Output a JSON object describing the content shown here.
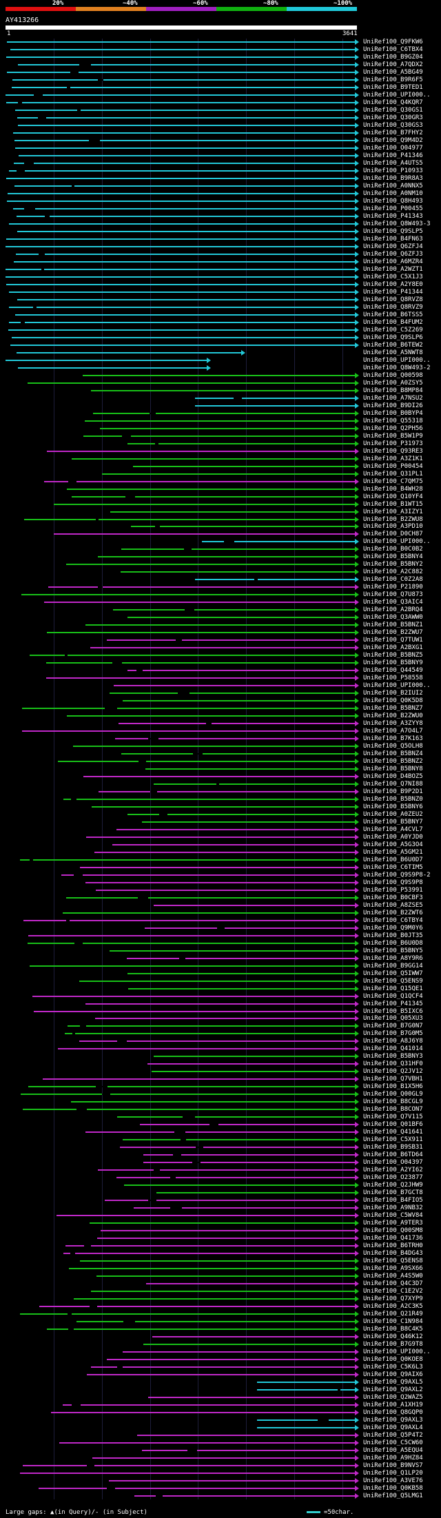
{
  "legend": {
    "labels": [
      "20%",
      "~40%",
      "~60%",
      "~80%",
      "~100%"
    ],
    "colors": [
      "#e01010",
      "#e08020",
      "#a020c0",
      "#10b010",
      "#20c8d8"
    ]
  },
  "query": {
    "name": "AY413266",
    "start": "1",
    "end": "3641"
  },
  "colors": {
    "c": "#22c8d8",
    "g": "#18c018",
    "m": "#c028c8",
    "gap": "#000000"
  },
  "hits": [
    {
      "id": "UniRef100_Q9FKW6",
      "c": "c"
    },
    {
      "id": "UniRef100_C6TBX4",
      "c": "c"
    },
    {
      "id": "UniRef100_B9GZ04",
      "c": "c"
    },
    {
      "id": "UniRef100_A7QDX2",
      "c": "c"
    },
    {
      "id": "UniRef100_A5BG49",
      "c": "c"
    },
    {
      "id": "UniRef100_B9R6F5",
      "c": "c"
    },
    {
      "id": "UniRef100_B9TED1",
      "c": "c"
    },
    {
      "id": "UniRef100_UPI000..",
      "c": "c"
    },
    {
      "id": "UniRef100_Q4KQR7",
      "c": "c"
    },
    {
      "id": "UniRef100_Q30GS1",
      "c": "c"
    },
    {
      "id": "UniRef100_Q30GR3",
      "c": "c"
    },
    {
      "id": "UniRef100_Q30GS3",
      "c": "c"
    },
    {
      "id": "UniRef100_B7FHY2",
      "c": "c"
    },
    {
      "id": "UniRef100_Q9M4D2",
      "c": "c"
    },
    {
      "id": "UniRef100_O04977",
      "c": "c"
    },
    {
      "id": "UniRef100_P41346",
      "c": "c"
    },
    {
      "id": "UniRef100_A4UTS5",
      "c": "c"
    },
    {
      "id": "UniRef100_P10933",
      "c": "c"
    },
    {
      "id": "UniRef100_B9R8A3",
      "c": "c"
    },
    {
      "id": "UniRef100_A0NNX5",
      "c": "c"
    },
    {
      "id": "UniRef100_A0NM10",
      "c": "c"
    },
    {
      "id": "UniRef100_Q8H493",
      "c": "c"
    },
    {
      "id": "UniRef100_P00455",
      "c": "c"
    },
    {
      "id": "UniRef100_P41343",
      "c": "c"
    },
    {
      "id": "UniRef100_Q8W493-3",
      "c": "c"
    },
    {
      "id": "UniRef100_Q9SLP5",
      "c": "c"
    },
    {
      "id": "UniRef100_B4FN63",
      "c": "c"
    },
    {
      "id": "UniRef100_Q6ZFJ4",
      "c": "c"
    },
    {
      "id": "UniRef100_Q6ZFJ3",
      "c": "c"
    },
    {
      "id": "UniRef100_A6MZR4",
      "c": "c"
    },
    {
      "id": "UniRef100_A2WZT1",
      "c": "c"
    },
    {
      "id": "UniRef100_C5X1J3",
      "c": "c"
    },
    {
      "id": "UniRef100_A2Y8E0",
      "c": "c"
    },
    {
      "id": "UniRef100_P41344",
      "c": "c"
    },
    {
      "id": "UniRef100_Q8RVZ8",
      "c": "c"
    },
    {
      "id": "UniRef100_Q8RVZ9",
      "c": "c"
    },
    {
      "id": "UniRef100_B6TSS5",
      "c": "c"
    },
    {
      "id": "UniRef100_B4FUM2",
      "c": "c"
    },
    {
      "id": "UniRef100_C5Z269",
      "c": "c"
    },
    {
      "id": "UniRef100_Q9SLP6",
      "c": "c"
    },
    {
      "id": "UniRef100_B6TEW2",
      "c": "c"
    },
    {
      "id": "UniRef100_A5NWT8",
      "c": "c"
    },
    {
      "id": "UniRef100_UPI000..",
      "c": "c"
    },
    {
      "id": "UniRef100_Q8W493-2",
      "c": "c"
    },
    {
      "id": "UniRef100_Q00598",
      "c": "g"
    },
    {
      "id": "UniRef100_A0ZSY5",
      "c": "g"
    },
    {
      "id": "UniRef100_B8MP84",
      "c": "g"
    },
    {
      "id": "UniRef100_A7NSU2",
      "c": "c"
    },
    {
      "id": "UniRef100_B9DI26",
      "c": "c"
    },
    {
      "id": "UniRef100_B0BYP4",
      "c": "g"
    },
    {
      "id": "UniRef100_Q55318",
      "c": "g"
    },
    {
      "id": "UniRef100_Q2PH56",
      "c": "g"
    },
    {
      "id": "UniRef100_B5W1P9",
      "c": "g"
    },
    {
      "id": "UniRef100_P31973",
      "c": "g"
    },
    {
      "id": "UniRef100_Q93RE3",
      "c": "m"
    },
    {
      "id": "UniRef100_A3Z1K1",
      "c": "g"
    },
    {
      "id": "UniRef100_P00454",
      "c": "g"
    },
    {
      "id": "UniRef100_Q31PL1",
      "c": "g"
    },
    {
      "id": "UniRef100_C7QM75",
      "c": "m"
    },
    {
      "id": "UniRef100_B4WH28",
      "c": "g"
    },
    {
      "id": "UniRef100_Q10YF4",
      "c": "g"
    },
    {
      "id": "UniRef100_B1WT15",
      "c": "g"
    },
    {
      "id": "UniRef100_A3IZY1",
      "c": "g"
    },
    {
      "id": "UniRef100_B2ZWU8",
      "c": "g"
    },
    {
      "id": "UniRef100_A3PD10",
      "c": "g"
    },
    {
      "id": "UniRef100_D0CH87",
      "c": "m"
    },
    {
      "id": "UniRef100_UPI000..",
      "c": "c"
    },
    {
      "id": "UniRef100_B0C0B2",
      "c": "g"
    },
    {
      "id": "UniRef100_B5BNY4",
      "c": "g"
    },
    {
      "id": "UniRef100_B5BNY2",
      "c": "g"
    },
    {
      "id": "UniRef100_A2C882",
      "c": "g"
    },
    {
      "id": "UniRef100_C0Z2A8",
      "c": "c"
    },
    {
      "id": "UniRef100_P21890",
      "c": "m"
    },
    {
      "id": "UniRef100_Q7U873",
      "c": "g"
    },
    {
      "id": "UniRef100_Q3AIC4",
      "c": "m"
    },
    {
      "id": "UniRef100_A2BRQ4",
      "c": "g"
    },
    {
      "id": "UniRef100_Q3AWW0",
      "c": "g"
    },
    {
      "id": "UniRef100_B5BNZ1",
      "c": "g"
    },
    {
      "id": "UniRef100_B2ZWU7",
      "c": "g"
    },
    {
      "id": "UniRef100_Q7TUW1",
      "c": "m"
    },
    {
      "id": "UniRef100_A2BXG1",
      "c": "m"
    },
    {
      "id": "UniRef100_B5BNZ5",
      "c": "g"
    },
    {
      "id": "UniRef100_B5BNY9",
      "c": "g"
    },
    {
      "id": "UniRef100_Q44549",
      "c": "m"
    },
    {
      "id": "UniRef100_P58558",
      "c": "m"
    },
    {
      "id": "UniRef100_UPI000..",
      "c": "m"
    },
    {
      "id": "UniRef100_B2IUI2",
      "c": "g"
    },
    {
      "id": "UniRef100_Q0K5D8",
      "c": "g"
    },
    {
      "id": "UniRef100_B5BNZ7",
      "c": "g"
    },
    {
      "id": "UniRef100_B2ZWU0",
      "c": "g"
    },
    {
      "id": "UniRef100_A3ZYY8",
      "c": "m"
    },
    {
      "id": "UniRef100_A7O4L7",
      "c": "m"
    },
    {
      "id": "UniRef100_B7K163",
      "c": "m"
    },
    {
      "id": "UniRef100_Q5OLH8",
      "c": "g"
    },
    {
      "id": "UniRef100_B5BNZ4",
      "c": "g"
    },
    {
      "id": "UniRef100_B5BNZ2",
      "c": "g"
    },
    {
      "id": "UniRef100_B5BNY8",
      "c": "g"
    },
    {
      "id": "UniRef100_D4BOZ5",
      "c": "m"
    },
    {
      "id": "UniRef100_Q7NI88",
      "c": "g"
    },
    {
      "id": "UniRef100_B9P2D1",
      "c": "m"
    },
    {
      "id": "UniRef100_B5BNZ0",
      "c": "g"
    },
    {
      "id": "UniRef100_B5BNY6",
      "c": "g"
    },
    {
      "id": "UniRef100_A0ZEU2",
      "c": "g"
    },
    {
      "id": "UniRef100_B5BNY7",
      "c": "g"
    },
    {
      "id": "UniRef100_A4CVL7",
      "c": "m"
    },
    {
      "id": "UniRef100_A0YJD0",
      "c": "m"
    },
    {
      "id": "UniRef100_A5G3O4",
      "c": "m"
    },
    {
      "id": "UniRef100_A5GM21",
      "c": "m"
    },
    {
      "id": "UniRef100_B6U0D7",
      "c": "g"
    },
    {
      "id": "UniRef100_C6TIM5",
      "c": "m"
    },
    {
      "id": "UniRef100_Q9S9P8-2",
      "c": "m"
    },
    {
      "id": "UniRef100_Q9S9P8",
      "c": "m"
    },
    {
      "id": "UniRef100_P53991",
      "c": "m"
    },
    {
      "id": "UniRef100_B0CBF3",
      "c": "g"
    },
    {
      "id": "UniRef100_A8ZSE5",
      "c": "m"
    },
    {
      "id": "UniRef100_B2ZWT6",
      "c": "g"
    },
    {
      "id": "UniRef100_C6TBY4",
      "c": "m"
    },
    {
      "id": "UniRef100_Q9M0Y6",
      "c": "m"
    },
    {
      "id": "UniRef100_B0JT35",
      "c": "m"
    },
    {
      "id": "UniRef100_B6U0D8",
      "c": "g"
    },
    {
      "id": "UniRef100_B5BNY5",
      "c": "g"
    },
    {
      "id": "UniRef100_A8Y9R6",
      "c": "m"
    },
    {
      "id": "UniRef100_B9GG14",
      "c": "g"
    },
    {
      "id": "UniRef100_Q5IWW7",
      "c": "g"
    },
    {
      "id": "UniRef100_Q5ENS9",
      "c": "g"
    },
    {
      "id": "UniRef100_Q15QE1",
      "c": "g"
    },
    {
      "id": "UniRef100_Q1QCF4",
      "c": "m"
    },
    {
      "id": "UniRef100_P41345",
      "c": "m"
    },
    {
      "id": "UniRef100_B5IXC6",
      "c": "m"
    },
    {
      "id": "UniRef100_Q05XU3",
      "c": "m"
    },
    {
      "id": "UniRef100_B7G0N7",
      "c": "g"
    },
    {
      "id": "UniRef100_B7G0M5",
      "c": "g"
    },
    {
      "id": "UniRef100_A8J6Y8",
      "c": "m"
    },
    {
      "id": "UniRef100_Q41014",
      "c": "m"
    },
    {
      "id": "UniRef100_B5BNY3",
      "c": "g"
    },
    {
      "id": "UniRef100_Q31HF0",
      "c": "m"
    },
    {
      "id": "UniRef100_Q2JV12",
      "c": "g"
    },
    {
      "id": "UniRef100_Q7VBH1",
      "c": "m"
    },
    {
      "id": "UniRef100_B1X5H6",
      "c": "g"
    },
    {
      "id": "UniRef100_Q00GL9",
      "c": "g"
    },
    {
      "id": "UniRef100_B8CGL9",
      "c": "g"
    },
    {
      "id": "UniRef100_B8CON7",
      "c": "g"
    },
    {
      "id": "UniRef100_Q7V115",
      "c": "g"
    },
    {
      "id": "UniRef100_Q01BF6",
      "c": "m"
    },
    {
      "id": "UniRef100_Q41641",
      "c": "m"
    },
    {
      "id": "UniRef100_C5X911",
      "c": "g"
    },
    {
      "id": "UniRef100_B9SB31",
      "c": "m"
    },
    {
      "id": "UniRef100_B6TD64",
      "c": "m"
    },
    {
      "id": "UniRef100_O04397",
      "c": "m"
    },
    {
      "id": "UniRef100_A2YI62",
      "c": "m"
    },
    {
      "id": "UniRef100_O23877",
      "c": "m"
    },
    {
      "id": "UniRef100_Q2JHW9",
      "c": "g"
    },
    {
      "id": "UniRef100_B7GCT8",
      "c": "g"
    },
    {
      "id": "UniRef100_B4FIO5",
      "c": "m"
    },
    {
      "id": "UniRef100_A9NB32",
      "c": "m"
    },
    {
      "id": "UniRef100_C5WV84",
      "c": "m"
    },
    {
      "id": "UniRef100_A9TER3",
      "c": "g"
    },
    {
      "id": "UniRef100_Q00SM8",
      "c": "m"
    },
    {
      "id": "UniRef100_Q41736",
      "c": "m"
    },
    {
      "id": "UniRef100_B6TRH0",
      "c": "m"
    },
    {
      "id": "UniRef100_B4DG43",
      "c": "m"
    },
    {
      "id": "UniRef100_Q5ENS8",
      "c": "g"
    },
    {
      "id": "UniRef100_A9SX66",
      "c": "g"
    },
    {
      "id": "UniRef100_A4S5W0",
      "c": "g"
    },
    {
      "id": "UniRef100_Q4C3D7",
      "c": "m"
    },
    {
      "id": "UniRef100_C1E2V2",
      "c": "g"
    },
    {
      "id": "UniRef100_Q7XYP9",
      "c": "g"
    },
    {
      "id": "UniRef100_A2C3K5",
      "c": "m"
    },
    {
      "id": "UniRef100_Q21R49",
      "c": "g"
    },
    {
      "id": "UniRef100_C1N984",
      "c": "g"
    },
    {
      "id": "UniRef100_B8C4K5",
      "c": "g"
    },
    {
      "id": "UniRef100_Q46K12",
      "c": "m"
    },
    {
      "id": "UniRef100_B7G9T8",
      "c": "g"
    },
    {
      "id": "UniRef100_UPI000..",
      "c": "m"
    },
    {
      "id": "UniRef100_Q0KOE8",
      "c": "m"
    },
    {
      "id": "UniRef100_C5K6L3",
      "c": "m"
    },
    {
      "id": "UniRef100_Q9AIX6",
      "c": "m"
    },
    {
      "id": "UniRef100_Q9AXL5",
      "c": "c"
    },
    {
      "id": "UniRef100_Q9AXL2",
      "c": "c"
    },
    {
      "id": "UniRef100_Q2WAZ5",
      "c": "m"
    },
    {
      "id": "UniRef100_A1XH19",
      "c": "m"
    },
    {
      "id": "UniRef100_Q8GQP0",
      "c": "m"
    },
    {
      "id": "UniRef100_Q9AXL3",
      "c": "c"
    },
    {
      "id": "UniRef100_Q9AXL4",
      "c": "c"
    },
    {
      "id": "UniRef100_Q5P4T2",
      "c": "m"
    },
    {
      "id": "UniRef100_C5CW60",
      "c": "m"
    },
    {
      "id": "UniRef100_A5EQU4",
      "c": "m"
    },
    {
      "id": "UniRef100_A9HZ84",
      "c": "m"
    },
    {
      "id": "UniRef100_B9NVS7",
      "c": "m"
    },
    {
      "id": "UniRef100_Q1LP20",
      "c": "m"
    },
    {
      "id": "UniRef100_A3VE76",
      "c": "m"
    },
    {
      "id": "UniRef100_Q0KB58",
      "c": "m"
    },
    {
      "id": "UniRef100_Q5LMG1",
      "c": "m"
    }
  ],
  "footer": {
    "gaps": "Large gaps: ▲(in Query)/- (in Subject)",
    "scale": "=50char."
  }
}
